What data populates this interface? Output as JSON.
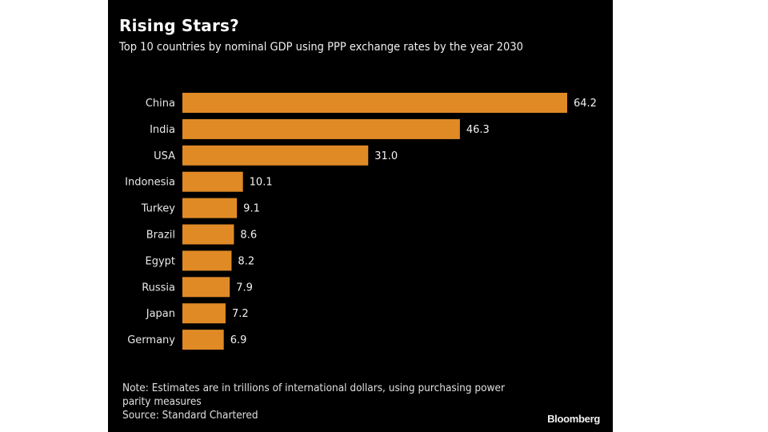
{
  "header": {
    "title": "Rising Stars?",
    "subtitle": "Top 10 countries by nominal GDP using PPP exchange rates by the year 2030"
  },
  "footer": {
    "note": "Note: Estimates are in trillions of international dollars, using purchasing power parity measures",
    "source": "Source: Standard Chartered",
    "brand": "Bloomberg"
  },
  "colors": {
    "bar": "#e08a26",
    "background": "#000000"
  },
  "chart_data": {
    "type": "bar",
    "orientation": "horizontal",
    "title": "Rising Stars?",
    "subtitle": "Top 10 countries by nominal GDP using PPP exchange rates by the year 2030",
    "xlabel": "",
    "ylabel": "",
    "unit": "trillions of international dollars",
    "categories": [
      "China",
      "India",
      "USA",
      "Indonesia",
      "Turkey",
      "Brazil",
      "Egypt",
      "Russia",
      "Japan",
      "Germany"
    ],
    "values": [
      64.2,
      46.3,
      31.0,
      10.1,
      9.1,
      8.6,
      8.2,
      7.9,
      7.2,
      6.9
    ],
    "value_labels": [
      "64.2",
      "46.3",
      "31.0",
      "10.1",
      "9.1",
      "8.6",
      "8.2",
      "7.9",
      "7.2",
      "6.9"
    ],
    "xlim": [
      0,
      64.2
    ],
    "grid": false,
    "legend": "none"
  }
}
